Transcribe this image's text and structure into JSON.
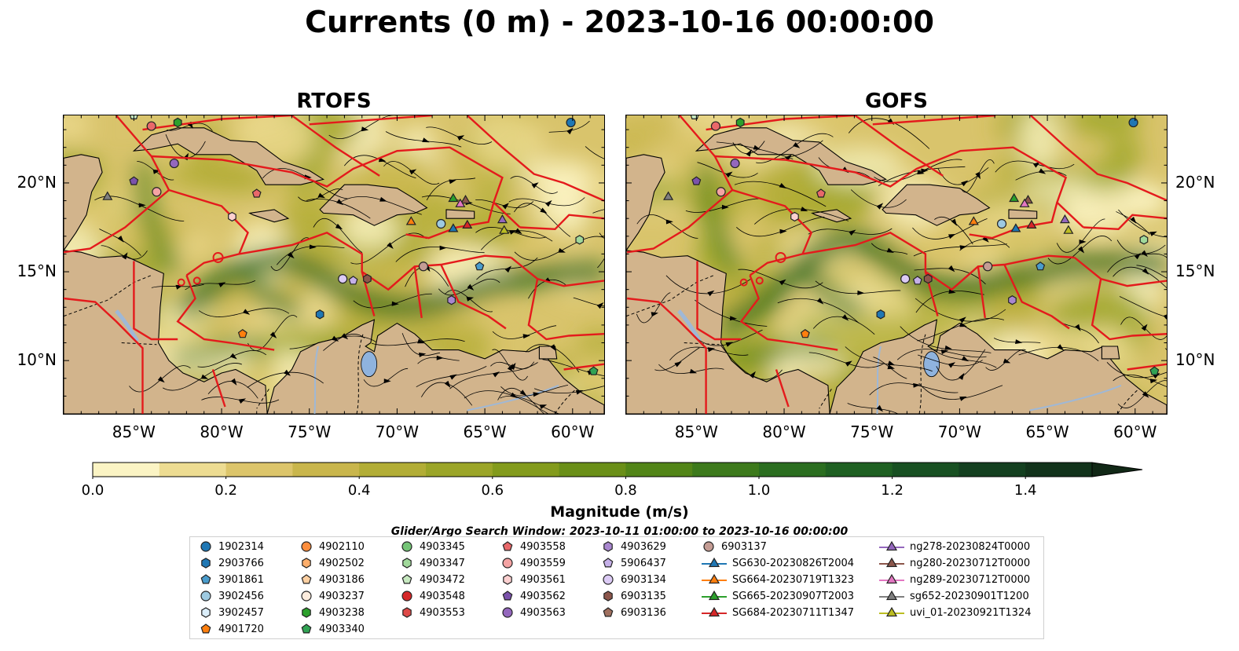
{
  "title": "Currents (0 m) - 2023-10-16 00:00:00",
  "panels": [
    {
      "title": "RTOFS",
      "variant": 0
    },
    {
      "title": "GOFS",
      "variant": 1
    }
  ],
  "axes": {
    "lon_ticks": [
      "85°W",
      "80°W",
      "75°W",
      "70°W",
      "65°W",
      "60°W"
    ],
    "lat_ticks": [
      "20°N",
      "15°N",
      "10°N"
    ]
  },
  "colorbar": {
    "title": "Magnitude (m/s)",
    "range": [
      0.0,
      1.5
    ],
    "labels": [
      "0.0",
      "0.2",
      "0.4",
      "0.6",
      "0.8",
      "1.0",
      "1.2",
      "1.4"
    ],
    "colors": [
      "#fbf4c4",
      "#eddc92",
      "#dcc56b",
      "#c9b64c",
      "#b2ad36",
      "#9ba528",
      "#839b1c",
      "#6a8f18",
      "#528518",
      "#3d7a1c",
      "#2b6e20",
      "#1f6022",
      "#185022",
      "#144020",
      "#12331b",
      "#112816"
    ]
  },
  "search_window": "Glider/Argo Search Window: 2023-10-11 01:00:00 to 2023-10-16 00:00:00",
  "legend": {
    "columns": [
      [
        {
          "label": "1902314",
          "shape": "circle",
          "color": "#1f77b4"
        },
        {
          "label": "2903766",
          "shape": "hexagon",
          "color": "#1f77b4"
        },
        {
          "label": "3901861",
          "shape": "pentagon",
          "color": "#4a9ccc"
        },
        {
          "label": "3902456",
          "shape": "circle",
          "color": "#9ecae1"
        },
        {
          "label": "3902457",
          "shape": "hexagon",
          "color": "#dbeefa"
        },
        {
          "label": "4901720",
          "shape": "pentagon",
          "color": "#ff7f0e"
        }
      ],
      [
        {
          "label": "4902110",
          "shape": "circle",
          "color": "#fd8d3c"
        },
        {
          "label": "4902502",
          "shape": "hexagon",
          "color": "#fdae6b"
        },
        {
          "label": "4903186",
          "shape": "pentagon",
          "color": "#fdd0a2"
        },
        {
          "label": "4903237",
          "shape": "circle",
          "color": "#feedde"
        },
        {
          "label": "4903238",
          "shape": "hexagon",
          "color": "#2ca02c"
        },
        {
          "label": "4903340",
          "shape": "pentagon",
          "color": "#31a354"
        }
      ],
      [
        {
          "label": "4903345",
          "shape": "circle",
          "color": "#74c476"
        },
        {
          "label": "4903347",
          "shape": "hexagon",
          "color": "#a1d99b"
        },
        {
          "label": "4903472",
          "shape": "pentagon",
          "color": "#c7e9c0"
        },
        {
          "label": "4903548",
          "shape": "circle",
          "color": "#d62728"
        },
        {
          "label": "4903553",
          "shape": "hexagon",
          "color": "#de4a48"
        }
      ],
      [
        {
          "label": "4903558",
          "shape": "pentagon",
          "color": "#e9686a"
        },
        {
          "label": "4903559",
          "shape": "circle",
          "color": "#f4a3a3"
        },
        {
          "label": "4903561",
          "shape": "hexagon",
          "color": "#fcd0d0"
        },
        {
          "label": "4903562",
          "shape": "pentagon",
          "color": "#7b52ab"
        },
        {
          "label": "4903563",
          "shape": "circle",
          "color": "#9467bd"
        }
      ],
      [
        {
          "label": "4903629",
          "shape": "hexagon",
          "color": "#a987cf"
        },
        {
          "label": "5906437",
          "shape": "pentagon",
          "color": "#c5b0e8"
        },
        {
          "label": "6903134",
          "shape": "circle",
          "color": "#dccbf5"
        },
        {
          "label": "6903135",
          "shape": "hexagon",
          "color": "#8c564b"
        },
        {
          "label": "6903136",
          "shape": "pentagon",
          "color": "#a0705f"
        }
      ],
      [
        {
          "label": "6903137",
          "shape": "circle",
          "color": "#c49c94"
        },
        {
          "label": "SG630-20230826T2004",
          "shape": "triangle",
          "color": "#1f77b4"
        },
        {
          "label": "SG664-20230719T1323",
          "shape": "triangle",
          "color": "#ff7f0e"
        },
        {
          "label": "SG665-20230907T2003",
          "shape": "triangle",
          "color": "#2ca02c"
        },
        {
          "label": "SG684-20230711T1347",
          "shape": "triangle",
          "color": "#d62728"
        }
      ],
      [
        {
          "label": "ng278-20230824T0000",
          "shape": "triangle",
          "color": "#9467bd"
        },
        {
          "label": "ng280-20230712T0000",
          "shape": "triangle",
          "color": "#8c564b"
        },
        {
          "label": "ng289-20230712T0000",
          "shape": "triangle",
          "color": "#e377c2"
        },
        {
          "label": "sg652-20230901T1200",
          "shape": "triangle",
          "color": "#7f7f7f"
        },
        {
          "label": "uvi_01-20230921T1324",
          "shape": "triangle",
          "color": "#bcbd22"
        }
      ]
    ]
  }
}
